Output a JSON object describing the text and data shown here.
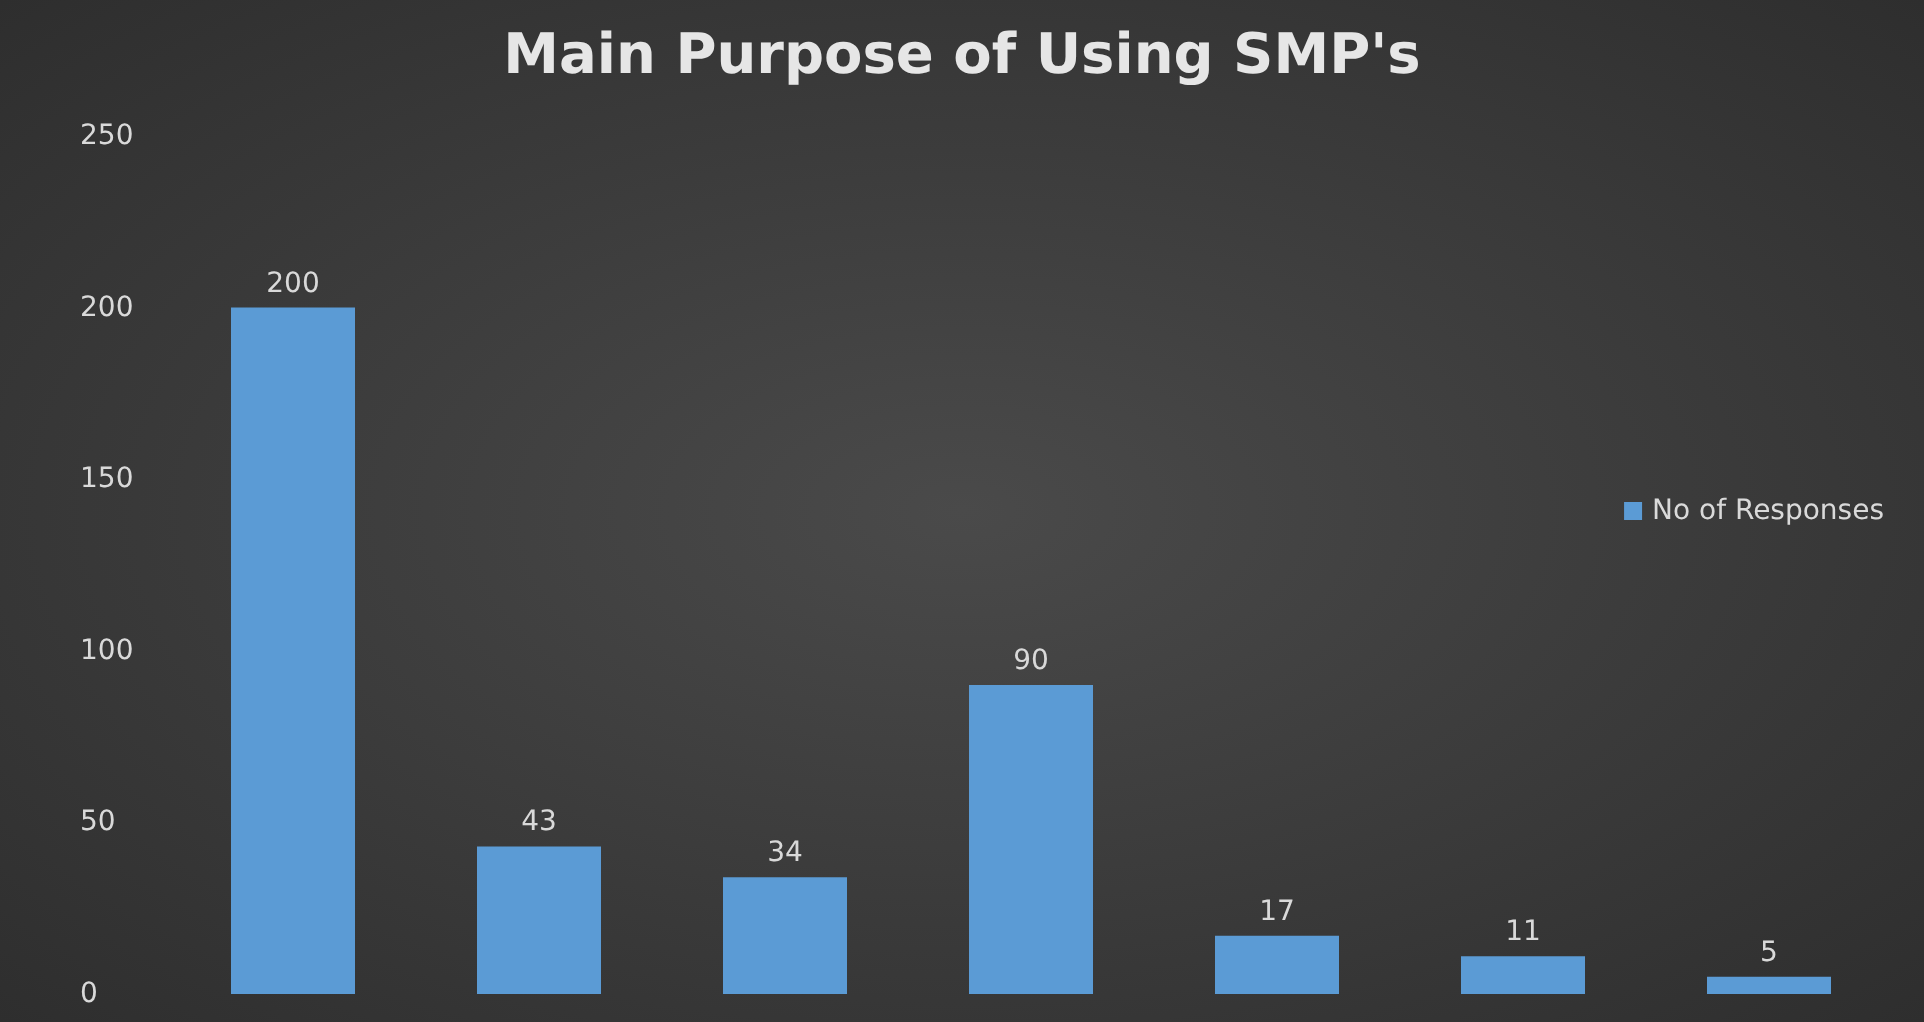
{
  "chart_data": {
    "type": "bar",
    "title": "Main Purpose of Using SMP's",
    "categories": [
      null,
      null,
      null,
      null,
      null,
      null,
      null
    ],
    "series": [
      {
        "name": "No of Responses",
        "color": "#5b9bd5",
        "values": [
          200,
          43,
          34,
          90,
          17,
          11,
          5
        ]
      }
    ],
    "ylim": [
      0,
      250
    ],
    "yticks": [
      0,
      50,
      100,
      150,
      200,
      250
    ],
    "grid": false,
    "legend": "right",
    "data_labels": true
  }
}
